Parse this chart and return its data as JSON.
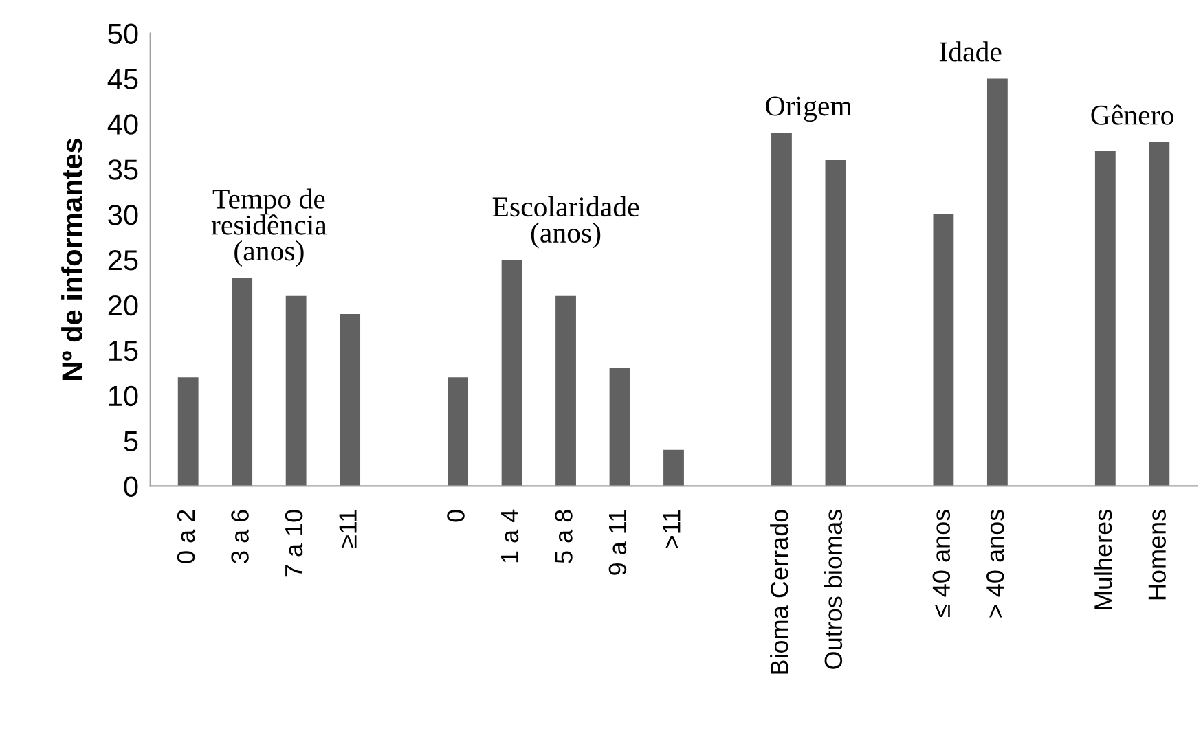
{
  "chart_data": {
    "type": "bar",
    "ylabel": "Nº de informantes",
    "categories": [
      "0 a 2",
      "3 a 6",
      "7 a 10",
      "≥11",
      null,
      "0",
      "1 a 4",
      "5 a 8",
      "9 a 11",
      ">11",
      null,
      "Bioma Cerrado",
      "Outros biomas",
      null,
      "≤ 40 anos",
      "> 40 anos",
      null,
      "Mulheres",
      "Homens"
    ],
    "values": [
      12,
      23,
      21,
      19,
      null,
      12,
      25,
      21,
      13,
      4,
      null,
      39,
      36,
      null,
      30,
      45,
      null,
      37,
      38
    ],
    "color": "#616161",
    "ylim": [
      0,
      50
    ],
    "yticks": [
      0,
      5,
      10,
      15,
      20,
      25,
      30,
      35,
      40,
      45,
      50
    ],
    "grid": false,
    "annotations": [
      "Tempo de\nresidência\n(anos)",
      "Escolaridade\n(anos)",
      "Origem",
      "Idade",
      "Gênero"
    ]
  }
}
